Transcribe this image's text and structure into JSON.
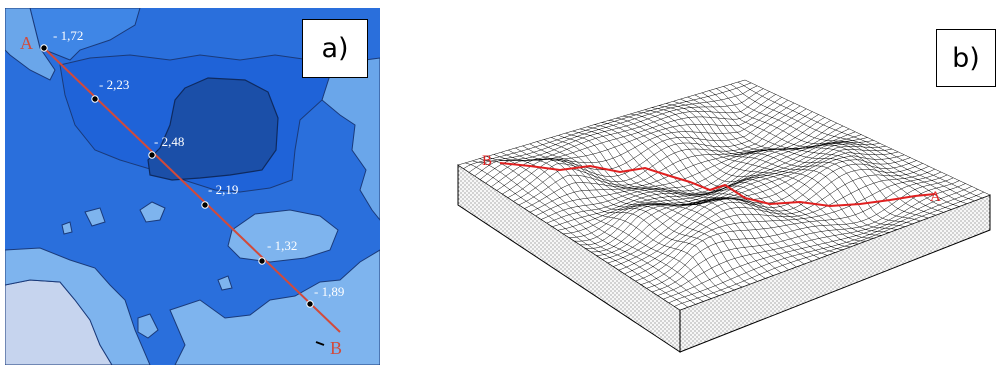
{
  "panel_a": {
    "label": "a)",
    "profile": {
      "start_label": "A",
      "end_label": "B",
      "points": [
        {
          "depth": "- 1,72"
        },
        {
          "depth": "- 2,23"
        },
        {
          "depth": "- 2,48"
        },
        {
          "depth": "- 2,19"
        },
        {
          "depth": "- 1,32"
        },
        {
          "depth": "- 1,89"
        }
      ]
    },
    "colors": {
      "deep": "#1b4fa8",
      "mid": "#1f63d8",
      "main": "#2a6fdc",
      "shallow": "#6aa6ea",
      "land": "#c6d4ee",
      "islands": "#7eb4ee",
      "profile_line": "#d24a3a"
    }
  },
  "panel_b": {
    "label": "b)",
    "profile": {
      "start_label": "B",
      "end_label": "A"
    },
    "colors": {
      "mesh": "#000000",
      "profile_line": "#e02020",
      "side": "#f4f4f4"
    }
  }
}
